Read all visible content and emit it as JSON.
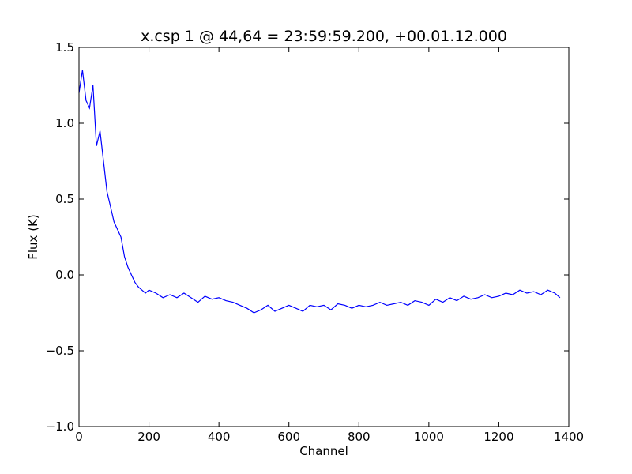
{
  "chart_data": {
    "type": "line",
    "title": "x.csp 1 @ 44,64 = 23:59:59.200, +00.01.12.000",
    "xlabel": "Channel",
    "ylabel": "Flux (K)",
    "xlim": [
      0,
      1400
    ],
    "ylim": [
      -1.0,
      1.5
    ],
    "xticks": [
      0,
      200,
      400,
      600,
      800,
      1000,
      1200,
      1400
    ],
    "xtick_labels": [
      "0",
      "200",
      "400",
      "600",
      "800",
      "1000",
      "1200",
      "1400"
    ],
    "yticks": [
      -1.0,
      -0.5,
      0.0,
      0.5,
      1.0,
      1.5
    ],
    "ytick_labels": [
      "−1.0",
      "−0.5",
      "0.0",
      "0.5",
      "1.0",
      "1.5"
    ],
    "grid": false,
    "series": [
      {
        "color": "#0000ff",
        "x": [
          0,
          10,
          20,
          30,
          40,
          50,
          60,
          70,
          80,
          90,
          100,
          110,
          120,
          130,
          140,
          150,
          160,
          170,
          180,
          190,
          200,
          220,
          240,
          260,
          280,
          300,
          320,
          340,
          360,
          380,
          400,
          420,
          440,
          460,
          480,
          500,
          520,
          540,
          560,
          580,
          600,
          620,
          640,
          660,
          680,
          700,
          720,
          740,
          760,
          780,
          800,
          820,
          840,
          860,
          880,
          900,
          920,
          940,
          960,
          980,
          1000,
          1020,
          1040,
          1060,
          1080,
          1100,
          1120,
          1140,
          1160,
          1180,
          1200,
          1220,
          1240,
          1260,
          1280,
          1300,
          1320,
          1340,
          1360,
          1375
        ],
        "y": [
          1.2,
          1.35,
          1.15,
          1.1,
          1.25,
          0.85,
          0.95,
          0.75,
          0.55,
          0.45,
          0.35,
          0.3,
          0.25,
          0.12,
          0.05,
          0.0,
          -0.05,
          -0.08,
          -0.1,
          -0.12,
          -0.1,
          -0.12,
          -0.15,
          -0.13,
          -0.15,
          -0.12,
          -0.15,
          -0.18,
          -0.14,
          -0.16,
          -0.15,
          -0.17,
          -0.18,
          -0.2,
          -0.22,
          -0.25,
          -0.23,
          -0.2,
          -0.24,
          -0.22,
          -0.2,
          -0.22,
          -0.24,
          -0.2,
          -0.21,
          -0.2,
          -0.23,
          -0.19,
          -0.2,
          -0.22,
          -0.2,
          -0.21,
          -0.2,
          -0.18,
          -0.2,
          -0.19,
          -0.18,
          -0.2,
          -0.17,
          -0.18,
          -0.2,
          -0.16,
          -0.18,
          -0.15,
          -0.17,
          -0.14,
          -0.16,
          -0.15,
          -0.13,
          -0.15,
          -0.14,
          -0.12,
          -0.13,
          -0.1,
          -0.12,
          -0.11,
          -0.13,
          -0.1,
          -0.12,
          -0.15
        ]
      }
    ]
  }
}
